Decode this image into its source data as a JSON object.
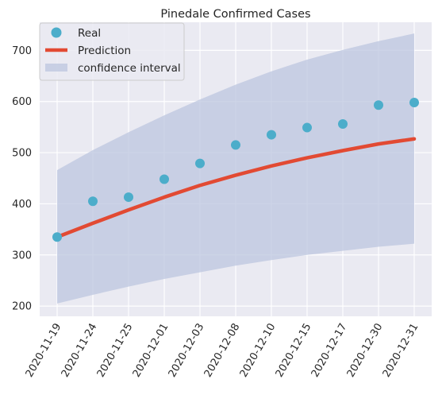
{
  "chart_data": {
    "type": "line",
    "title": "Pinedale Confirmed Cases",
    "xlabel": "",
    "ylabel": "",
    "categories": [
      "2020-11-19",
      "2020-11-24",
      "2020-11-25",
      "2020-12-01",
      "2020-12-03",
      "2020-12-08",
      "2020-12-10",
      "2020-12-15",
      "2020-12-17",
      "2020-12-30",
      "2020-12-31"
    ],
    "yticks": [
      200,
      300,
      400,
      500,
      600,
      700
    ],
    "ylim": [
      180,
      755
    ],
    "grid": true,
    "legend_position": "top-left",
    "series": [
      {
        "name": "Real",
        "kind": "scatter",
        "color": "#4cadca",
        "values": [
          335,
          405,
          413,
          448,
          479,
          515,
          535,
          549,
          556,
          593,
          598
        ]
      },
      {
        "name": "Prediction",
        "kind": "line",
        "color": "#e24a33",
        "values": [
          335,
          362,
          388,
          413,
          436,
          456,
          474,
          490,
          504,
          517,
          527
        ]
      },
      {
        "name": "confidence interval",
        "kind": "band",
        "color": "#bcc6df",
        "lower": [
          205,
          222,
          238,
          253,
          266,
          279,
          290,
          300,
          308,
          316,
          322
        ],
        "upper": [
          466,
          505,
          540,
          573,
          604,
          633,
          659,
          682,
          701,
          718,
          733
        ]
      }
    ]
  }
}
